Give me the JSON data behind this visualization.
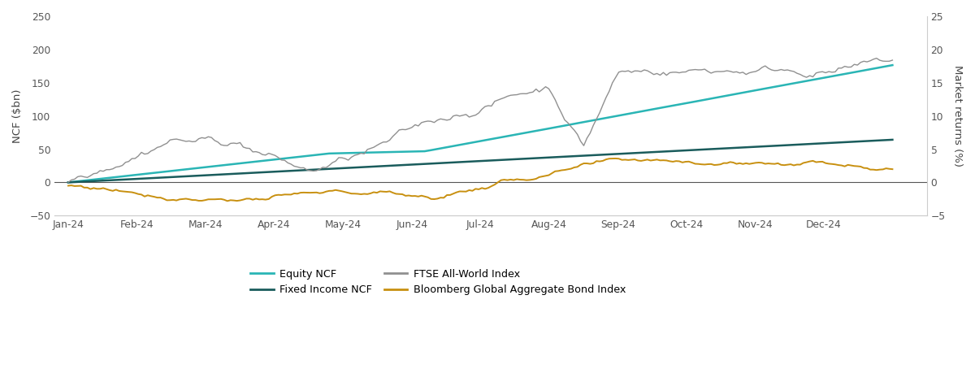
{
  "ylabel_left": "NCF ($bn)",
  "ylabel_right": "Market returns (%)",
  "ylim_left": [
    -50,
    250
  ],
  "ylim_right": [
    -5,
    25
  ],
  "yticks_left": [
    -50,
    0,
    50,
    100,
    150,
    200,
    250
  ],
  "yticks_right": [
    -5,
    0,
    5,
    10,
    15,
    20,
    25
  ],
  "xtick_labels": [
    "Jan-24",
    "Feb-24",
    "Mar-24",
    "Apr-24",
    "May-24",
    "Jun-24",
    "Jul-24",
    "Aug-24",
    "Sep-24",
    "Oct-24",
    "Nov-24",
    "Dec-24"
  ],
  "colors": {
    "equity_ncf": "#2ab5b5",
    "fixed_income_ncf": "#1a5c5c",
    "ftse": "#909090",
    "bloomberg": "#c89010"
  },
  "background": "#ffffff",
  "legend_labels": [
    "Equity NCF",
    "Fixed Income NCF",
    "FTSE All-World Index",
    "Bloomberg Global Aggregate Bond Index"
  ]
}
